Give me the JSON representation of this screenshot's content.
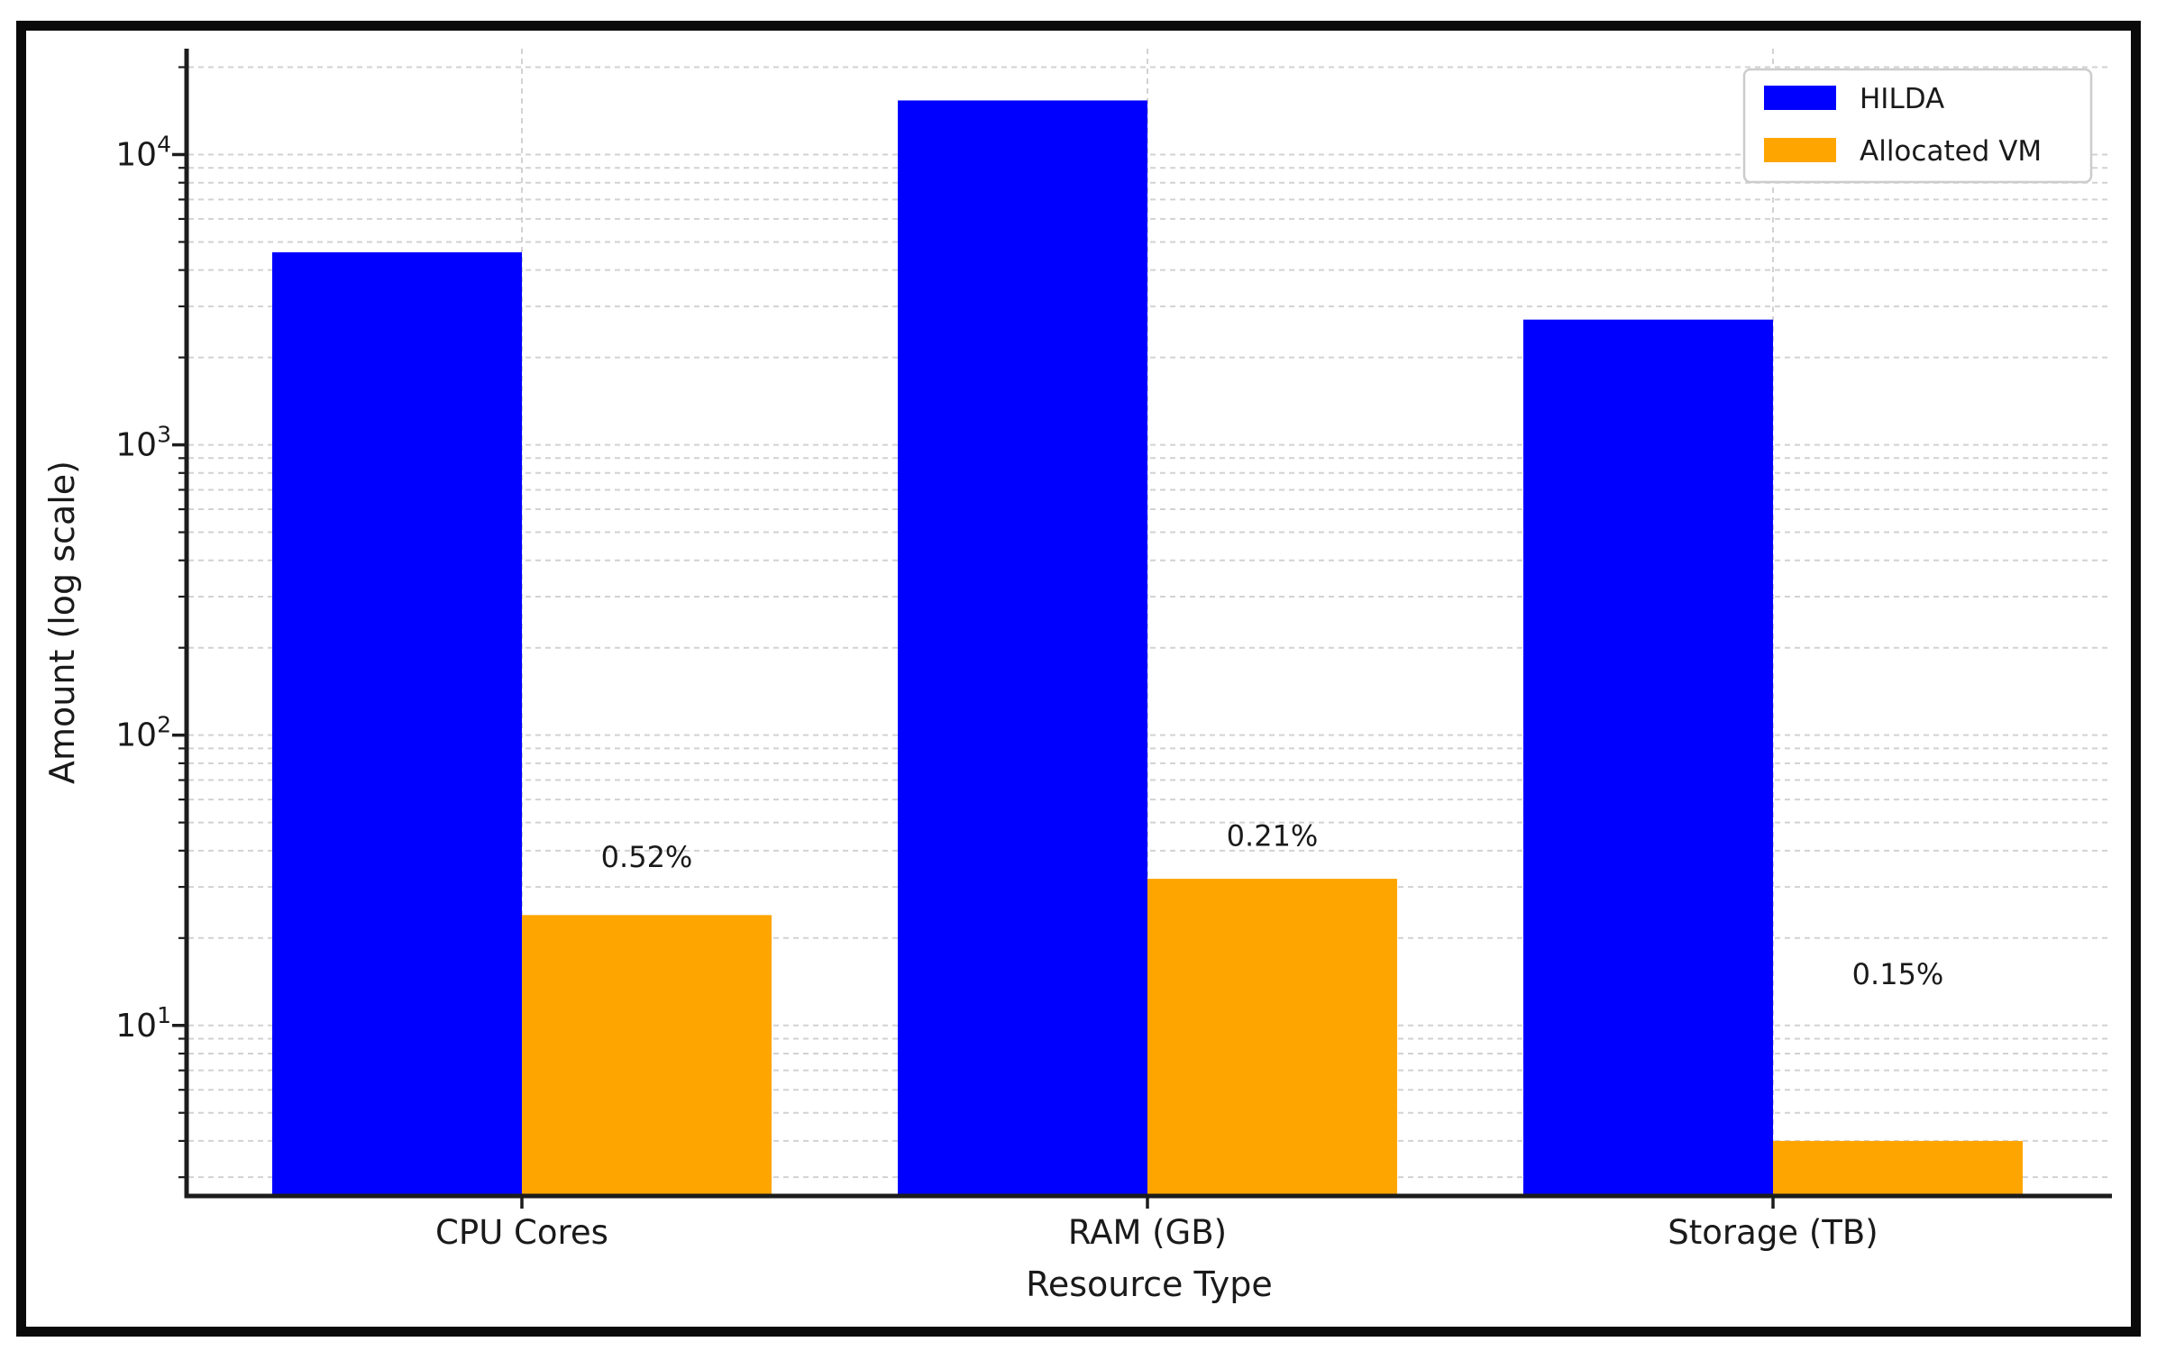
{
  "figure": {
    "background": "#ffffff",
    "border_color": "#0a0a0a"
  },
  "chart_data": {
    "type": "bar",
    "yscale": "log",
    "title": "",
    "xlabel": "Resource Type",
    "ylabel": "Amount (log scale)",
    "categories": [
      "CPU Cores",
      "RAM (GB)",
      "Storage (TB)"
    ],
    "series": [
      {
        "name": "HILDA",
        "color": "#0000ff",
        "values": [
          4608,
          15360,
          2700
        ]
      },
      {
        "name": "Allocated VM",
        "color": "#ffa500",
        "values": [
          24,
          32,
          4
        ]
      }
    ],
    "bar_labels": [
      {
        "text": "0.52%",
        "category": "CPU Cores",
        "label_y_value": 38
      },
      {
        "text": "0.21%",
        "category": "RAM (GB)",
        "label_y_value": 45
      },
      {
        "text": "0.15%",
        "category": "Storage (TB)",
        "label_y_value": 15
      }
    ],
    "ylim": [
      2.585,
      23160
    ],
    "ytick_values": [
      10,
      100,
      1000,
      10000
    ],
    "ytick_labels": [
      {
        "base": "10",
        "exponent": "1"
      },
      {
        "base": "10",
        "exponent": "2"
      },
      {
        "base": "10",
        "exponent": "3"
      },
      {
        "base": "10",
        "exponent": "4"
      }
    ],
    "grid": {
      "visible": true,
      "style": "dashed",
      "color": "#d2d2d2"
    },
    "legend": {
      "position": "upper right",
      "entries": [
        {
          "label": "HILDA",
          "color": "#0000ff"
        },
        {
          "label": "Allocated VM",
          "color": "#ffa500"
        }
      ]
    },
    "colors": {
      "spine": "#1c1c1c",
      "text": "#1a1a1a",
      "legend_border": "#cccccc"
    }
  }
}
